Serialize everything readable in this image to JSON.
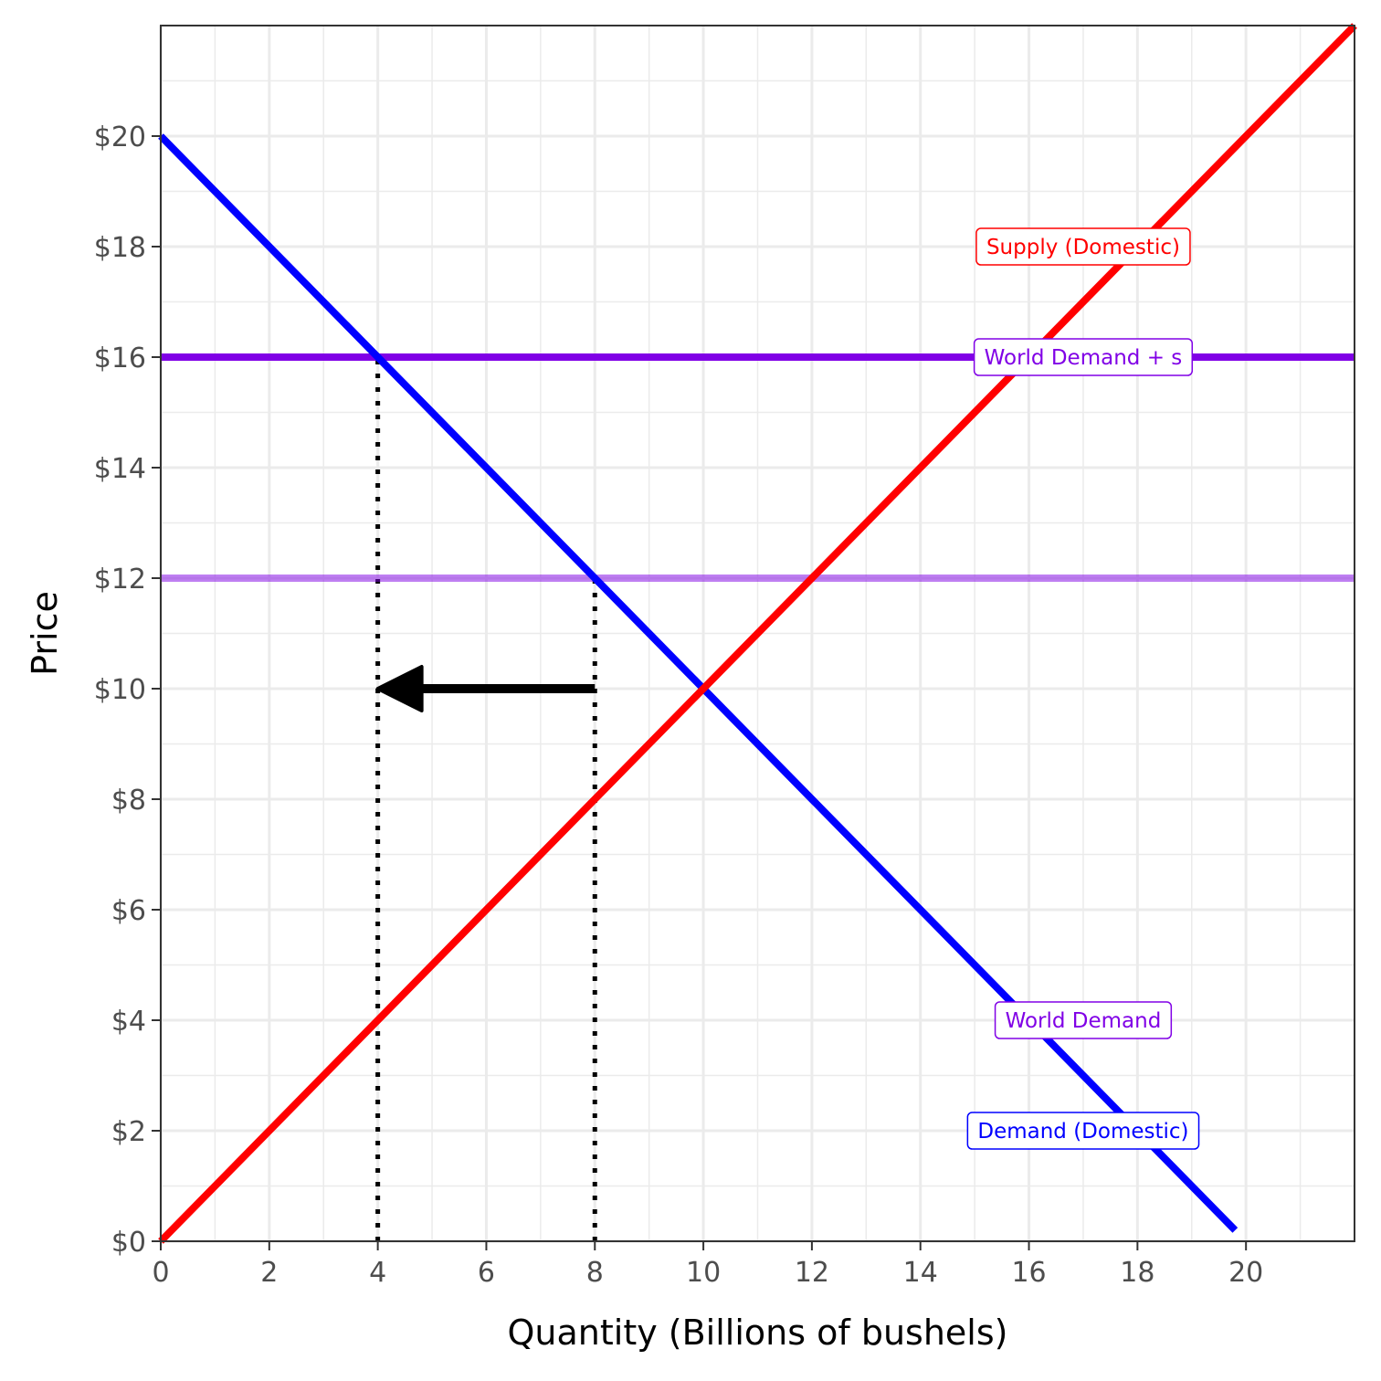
{
  "chart_data": {
    "type": "line",
    "xlabel": "Quantity (Billions of bushels)",
    "ylabel": "Price",
    "xlim": [
      0,
      22
    ],
    "ylim": [
      0,
      22
    ],
    "x_ticks": [
      0,
      2,
      4,
      6,
      8,
      10,
      12,
      14,
      16,
      18,
      20
    ],
    "x_tick_labels": [
      "0",
      "2",
      "4",
      "6",
      "8",
      "10",
      "12",
      "14",
      "16",
      "18",
      "20"
    ],
    "y_ticks": [
      0,
      2,
      4,
      6,
      8,
      10,
      12,
      14,
      16,
      18,
      20
    ],
    "y_tick_labels": [
      "$0",
      "$2",
      "$4",
      "$6",
      "$8",
      "$10",
      "$12",
      "$14",
      "$16",
      "$18",
      "$20"
    ],
    "grid": true,
    "series": [
      {
        "name": "Supply (Domestic)",
        "color": "#ff0000",
        "x": [
          0,
          22
        ],
        "y": [
          0,
          22
        ],
        "label_at": [
          17.0,
          18
        ]
      },
      {
        "name": "Demand (Domestic)",
        "color": "#0000ff",
        "x": [
          0,
          19.8
        ],
        "y": [
          20,
          0.2
        ],
        "label_at": [
          17.0,
          2
        ]
      },
      {
        "name": "World Demand + s",
        "color": "#8000e6",
        "x": [
          0,
          22
        ],
        "y": [
          16,
          16
        ],
        "label_at": [
          17.0,
          16
        ]
      },
      {
        "name": "World Demand",
        "color": "#8000e6",
        "opacity": 0.5,
        "x": [
          0,
          22
        ],
        "y": [
          12,
          12
        ],
        "label_at": [
          17.0,
          4
        ]
      }
    ],
    "reference_lines": [
      {
        "type": "vertical",
        "x": 4,
        "y_from": 0,
        "y_to": 16,
        "style": "dotted",
        "color": "#000000"
      },
      {
        "type": "vertical",
        "x": 8,
        "y_from": 0,
        "y_to": 12,
        "style": "dotted",
        "color": "#000000"
      }
    ],
    "annotations": [
      {
        "type": "arrow",
        "from": [
          8,
          10
        ],
        "to": [
          4,
          10
        ],
        "color": "#000000"
      }
    ]
  }
}
